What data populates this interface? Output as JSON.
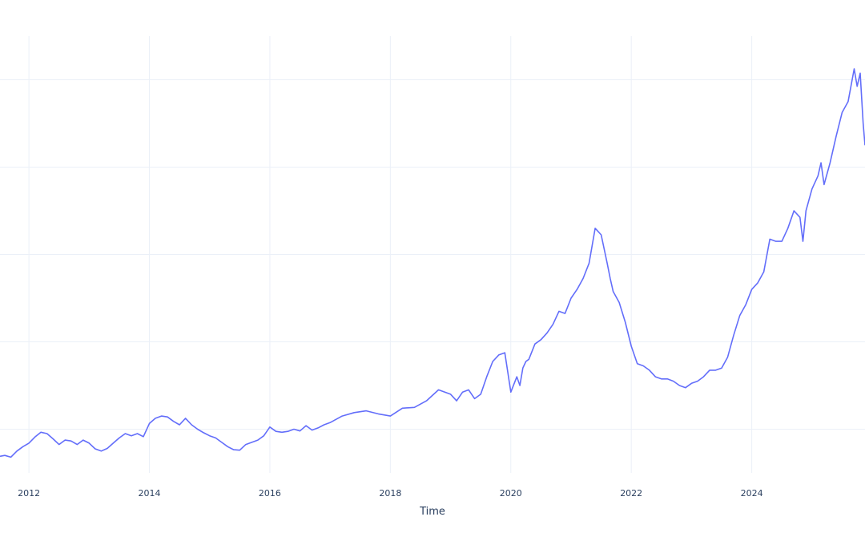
{
  "chart_data": {
    "type": "line",
    "title": "",
    "xlabel": "Time",
    "ylabel": "",
    "x_tick_labels": [
      "2012",
      "2014",
      "2016",
      "2018",
      "2020",
      "2022",
      "2024"
    ],
    "x_tick_values": [
      2012,
      2014,
      2016,
      2018,
      2020,
      2022,
      2024
    ],
    "xlim": [
      2011.52,
      2025.88
    ],
    "ylim": [
      0,
      100
    ],
    "y_grid_values": [
      10,
      30,
      50,
      70,
      90
    ],
    "grid": true,
    "legend": "none",
    "colors": {
      "line": "#636efa",
      "grid": "#ebf0f8",
      "text": "#2a3f5f"
    },
    "series": [
      {
        "x": [
          2011.52,
          2011.6,
          2011.7,
          2011.8,
          2011.9,
          2012.0,
          2012.1,
          2012.2,
          2012.3,
          2012.4,
          2012.5,
          2012.6,
          2012.7,
          2012.8,
          2012.9,
          2013.0,
          2013.1,
          2013.2,
          2013.3,
          2013.4,
          2013.5,
          2013.6,
          2013.7,
          2013.8,
          2013.9,
          2014.0,
          2014.1,
          2014.2,
          2014.3,
          2014.4,
          2014.5,
          2014.6,
          2014.7,
          2014.8,
          2014.9,
          2015.0,
          2015.1,
          2015.2,
          2015.3,
          2015.4,
          2015.5,
          2015.6,
          2015.7,
          2015.8,
          2015.9,
          2016.0,
          2016.1,
          2016.2,
          2016.3,
          2016.4,
          2016.5,
          2016.6,
          2016.7,
          2016.8,
          2016.9,
          2017.0,
          2017.2,
          2017.4,
          2017.6,
          2017.8,
          2018.0,
          2018.2,
          2018.4,
          2018.6,
          2018.8,
          2019.0,
          2019.1,
          2019.2,
          2019.3,
          2019.4,
          2019.5,
          2019.6,
          2019.7,
          2019.8,
          2019.9,
          2020.0,
          2020.1,
          2020.15,
          2020.2,
          2020.25,
          2020.3,
          2020.4,
          2020.5,
          2020.6,
          2020.7,
          2020.8,
          2020.9,
          2021.0,
          2021.1,
          2021.2,
          2021.3,
          2021.4,
          2021.5,
          2021.6,
          2021.65,
          2021.7,
          2021.8,
          2021.9,
          2022.0,
          2022.1,
          2022.2,
          2022.3,
          2022.4,
          2022.5,
          2022.6,
          2022.7,
          2022.8,
          2022.9,
          2023.0,
          2023.1,
          2023.2,
          2023.3,
          2023.4,
          2023.5,
          2023.6,
          2023.7,
          2023.8,
          2023.9,
          2024.0,
          2024.1,
          2024.2,
          2024.3,
          2024.4,
          2024.5,
          2024.6,
          2024.7,
          2024.8,
          2024.85,
          2024.9,
          2025.0,
          2025.1,
          2025.15,
          2025.2,
          2025.3,
          2025.4,
          2025.5,
          2025.6,
          2025.7,
          2025.75,
          2025.8,
          2025.85,
          2025.88
        ],
        "y": [
          3.8,
          4.0,
          3.6,
          5.0,
          6.0,
          6.8,
          8.2,
          9.3,
          9.0,
          7.8,
          6.5,
          7.5,
          7.3,
          6.5,
          7.5,
          6.8,
          5.5,
          5.0,
          5.6,
          6.8,
          8.0,
          9.0,
          8.5,
          9.0,
          8.3,
          11.3,
          12.5,
          13.0,
          12.8,
          11.8,
          11.0,
          12.5,
          11.0,
          10.0,
          9.2,
          8.5,
          8.0,
          7.0,
          6.0,
          5.3,
          5.2,
          6.5,
          7.0,
          7.5,
          8.5,
          10.5,
          9.5,
          9.3,
          9.5,
          10.0,
          9.6,
          10.8,
          9.8,
          10.3,
          11.0,
          11.5,
          13.0,
          13.8,
          14.2,
          13.5,
          13.0,
          14.8,
          15.0,
          16.5,
          19.0,
          18.0,
          16.5,
          18.5,
          19.0,
          17.0,
          18.0,
          22.0,
          25.5,
          27.0,
          27.5,
          18.5,
          22.0,
          20.0,
          24.0,
          25.5,
          26.0,
          29.5,
          30.5,
          32.0,
          34.0,
          37.0,
          36.5,
          40.0,
          42.0,
          44.5,
          48.0,
          56.0,
          54.5,
          48.0,
          44.5,
          41.5,
          39.0,
          34.5,
          29.0,
          25.0,
          24.5,
          23.5,
          22.0,
          21.5,
          21.5,
          21.0,
          20.0,
          19.5,
          20.5,
          21.0,
          22.0,
          23.5,
          23.5,
          24.0,
          26.5,
          31.5,
          36.0,
          38.5,
          42.0,
          43.5,
          46.0,
          53.5,
          53.0,
          53.0,
          56.0,
          60.0,
          58.5,
          53.0,
          60.0,
          65.0,
          68.0,
          71.0,
          66.0,
          71.0,
          77.0,
          82.5,
          85.0,
          92.5,
          88.5,
          91.5,
          80.0,
          75.0
        ]
      }
    ]
  }
}
